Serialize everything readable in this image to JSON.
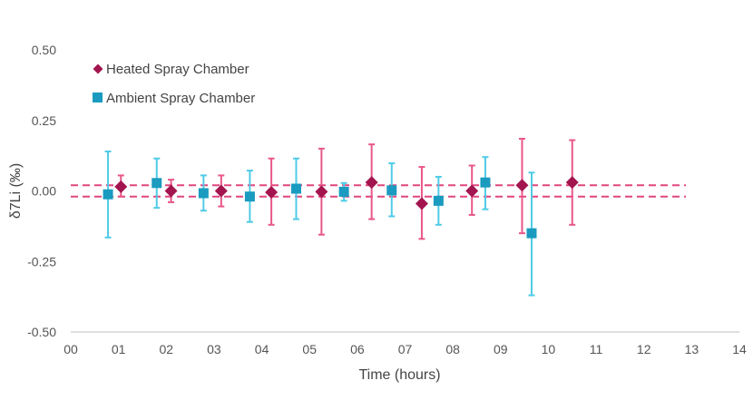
{
  "chart_data": {
    "type": "scatter",
    "title": "",
    "xlabel": "Time (hours)",
    "ylabel": "δ7Li (‰)",
    "xlim": [
      0,
      14
    ],
    "ylim": [
      -0.5,
      0.5
    ],
    "x_ticks": [
      "00",
      "01",
      "02",
      "03",
      "04",
      "05",
      "06",
      "07",
      "08",
      "09",
      "10",
      "11",
      "12",
      "13",
      "14"
    ],
    "y_ticks": [
      "0.50",
      "0.25",
      "0.00",
      "-0.25",
      "-0.50"
    ],
    "y_tick_values": [
      0.5,
      0.25,
      0.0,
      -0.25,
      -0.5
    ],
    "grid": false,
    "legend_position": "top-left",
    "reference_lines": [
      {
        "y": 0.02,
        "style": "dashed",
        "color": "#e0457e"
      },
      {
        "y": -0.02,
        "style": "dashed",
        "color": "#e0457e"
      }
    ],
    "series": [
      {
        "name": "Heated Spray Chamber",
        "marker": "diamond",
        "color": "#a3154f",
        "error_color": "#e8578a",
        "points": [
          {
            "x": 1.05,
            "y": 0.015,
            "low": -0.02,
            "high": 0.055
          },
          {
            "x": 2.1,
            "y": 0.0,
            "low": -0.04,
            "high": 0.04
          },
          {
            "x": 3.15,
            "y": 0.0,
            "low": -0.055,
            "high": 0.055
          },
          {
            "x": 4.2,
            "y": -0.005,
            "low": -0.12,
            "high": 0.115
          },
          {
            "x": 5.25,
            "y": -0.003,
            "low": -0.155,
            "high": 0.15
          },
          {
            "x": 6.3,
            "y": 0.03,
            "low": -0.1,
            "high": 0.165
          },
          {
            "x": 7.35,
            "y": -0.045,
            "low": -0.17,
            "high": 0.085
          },
          {
            "x": 8.4,
            "y": 0.0,
            "low": -0.085,
            "high": 0.09
          },
          {
            "x": 9.45,
            "y": 0.02,
            "low": -0.15,
            "high": 0.185
          },
          {
            "x": 10.5,
            "y": 0.03,
            "low": -0.12,
            "high": 0.18
          }
        ]
      },
      {
        "name": "Ambient Spray Chamber",
        "marker": "square",
        "color": "#1a9bbf",
        "error_color": "#4fcbe6",
        "points": [
          {
            "x": 0.78,
            "y": -0.012,
            "low": -0.165,
            "high": 0.14
          },
          {
            "x": 1.8,
            "y": 0.028,
            "low": -0.06,
            "high": 0.115
          },
          {
            "x": 2.78,
            "y": -0.008,
            "low": -0.07,
            "high": 0.055
          },
          {
            "x": 3.75,
            "y": -0.02,
            "low": -0.11,
            "high": 0.072
          },
          {
            "x": 4.72,
            "y": 0.008,
            "low": -0.1,
            "high": 0.115
          },
          {
            "x": 5.72,
            "y": -0.003,
            "low": -0.035,
            "high": 0.028
          },
          {
            "x": 6.72,
            "y": 0.002,
            "low": -0.09,
            "high": 0.098
          },
          {
            "x": 7.7,
            "y": -0.035,
            "low": -0.12,
            "high": 0.05
          },
          {
            "x": 8.68,
            "y": 0.03,
            "low": -0.065,
            "high": 0.12
          },
          {
            "x": 9.65,
            "y": -0.15,
            "low": -0.37,
            "high": 0.065
          }
        ]
      }
    ]
  }
}
